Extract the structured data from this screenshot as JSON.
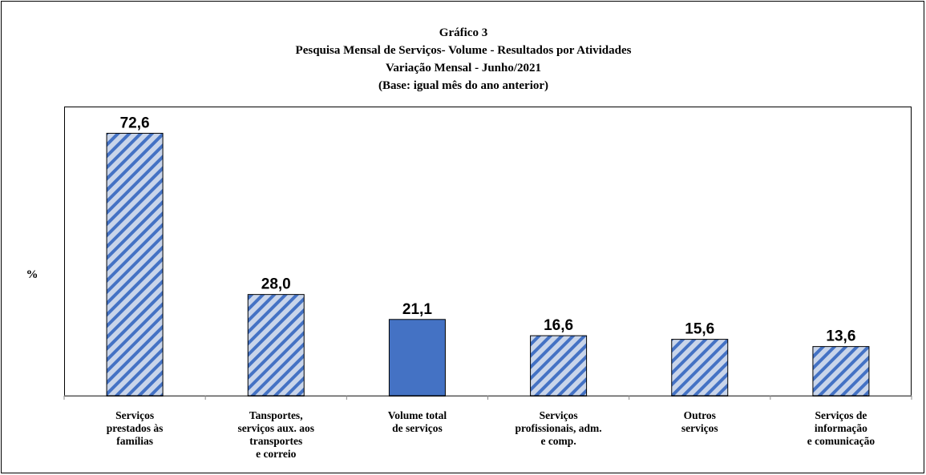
{
  "chart_data": {
    "type": "bar",
    "title": [
      "Gráfico 3",
      "Pesquisa  Mensal de Serviços- Volume - Resultados por Atividades",
      "Variação Mensal - Junho/2021",
      "(Base: igual mês do ano anterior)"
    ],
    "ylabel": "%",
    "categories": [
      [
        "Serviços",
        "prestados às",
        "famílias"
      ],
      [
        "Tansportes,",
        "serviços aux. aos",
        "transportes",
        "e correio"
      ],
      [
        "Volume total",
        "de serviços"
      ],
      [
        "Serviços",
        "profissionais, adm.",
        "e comp."
      ],
      [
        "Outros",
        "serviços"
      ],
      [
        "Serviços de",
        "informação",
        "e comunicação"
      ]
    ],
    "values": [
      72.6,
      28.0,
      21.1,
      16.6,
      15.6,
      13.6
    ],
    "value_labels": [
      "72,6",
      "28,0",
      "21,1",
      "16,6",
      "15,6",
      "13,6"
    ],
    "color": "#4472c4",
    "hatch_background": "#c9d5ea",
    "bar_styles": [
      "hatch",
      "hatch",
      "solid",
      "hatch",
      "hatch",
      "hatch"
    ],
    "ylim": [
      0,
      80
    ]
  }
}
